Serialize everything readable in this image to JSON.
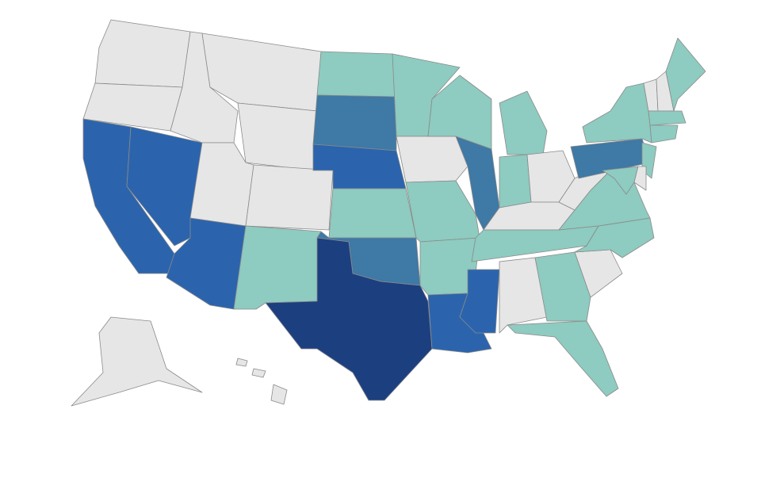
{
  "map": {
    "regions": [
      "#e6e6e6",
      "#e6e6e6",
      "#2b64ad",
      "#2b64ad",
      "#e6e6e6",
      "#e6e6e6",
      "#e6e6e6",
      "#e6e6e6",
      "#2b64ad",
      "#e6e6e6",
      "#8ecbc0",
      "#8ecbc0",
      "#3f79a5",
      "#2b64ad",
      "#8ecbc0",
      "#3f79a5",
      "#1c3f80",
      "#8ecbc0",
      "#e6e6e6",
      "#8ecbc0",
      "#8ecbc0",
      "#2b64ad",
      "#8ecbc0",
      "#3f79a5",
      "#2b64ad",
      "#8ecbc0",
      "#8ecbc0",
      "#e6e6e6",
      "#e6e6e6",
      "#8ecbc0",
      "#e6e6e6",
      "#8ecbc0",
      "#8ecbc0",
      "#e6e6e6",
      "#8ecbc0",
      "#8ecbc0",
      "#e6e6e6",
      "#3f79a5",
      "#8ecbc0",
      "#8ecbc0",
      "#8ecbc0",
      "#e6e6e6",
      "#e6e6e6",
      "#e6e6e6",
      "#8ecbc0",
      "#8ecbc0",
      "#8ecbc0",
      "#e6e6e6",
      "#e6e6e6",
      "#e6e6e6",
      "#e6e6e6"
    ]
  }
}
